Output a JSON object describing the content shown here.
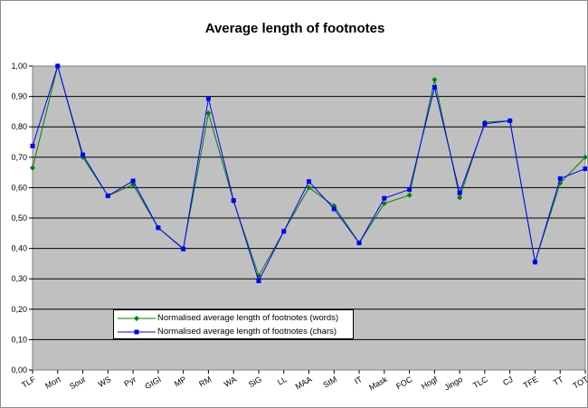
{
  "chart_data": {
    "type": "line",
    "title": "Average length of footnotes",
    "xlabel": "",
    "ylabel": "",
    "ylim": [
      0,
      1
    ],
    "yticks": [
      "0,00",
      "0,10",
      "0,20",
      "0,30",
      "0,40",
      "0,50",
      "0,60",
      "0,70",
      "0,80",
      "0,90",
      "1,00"
    ],
    "grid": true,
    "legend": "bottom-left inside plot",
    "plot_background": "#c0c0c0",
    "categories": [
      "TLF",
      "Mort",
      "Sour",
      "WS",
      "Pyr",
      "GIGI",
      "MP",
      "RM",
      "WA",
      "SiG",
      "LL",
      "MAA",
      "StM",
      "IT",
      "Mask",
      "FOC",
      "Hogf",
      "Jingo",
      "TLC",
      "CJ",
      "TFE",
      "TT",
      "TOT"
    ],
    "series": [
      {
        "name": "Normalised average length of footnotes (words)",
        "color": "#008000",
        "marker": "diamond",
        "values": [
          0.665,
          1.0,
          0.7,
          0.573,
          0.61,
          0.468,
          0.4,
          0.845,
          0.555,
          0.31,
          0.456,
          0.6,
          0.54,
          0.418,
          0.548,
          0.575,
          0.955,
          0.567,
          0.815,
          0.82,
          0.355,
          0.615,
          0.7
        ]
      },
      {
        "name": "Normalised average length of footnotes (chars)",
        "color": "#0000ff",
        "marker": "square",
        "values": [
          0.737,
          1.0,
          0.708,
          0.573,
          0.622,
          0.468,
          0.398,
          0.893,
          0.558,
          0.293,
          0.456,
          0.62,
          0.53,
          0.418,
          0.565,
          0.594,
          0.93,
          0.583,
          0.81,
          0.82,
          0.355,
          0.63,
          0.662
        ]
      }
    ]
  }
}
